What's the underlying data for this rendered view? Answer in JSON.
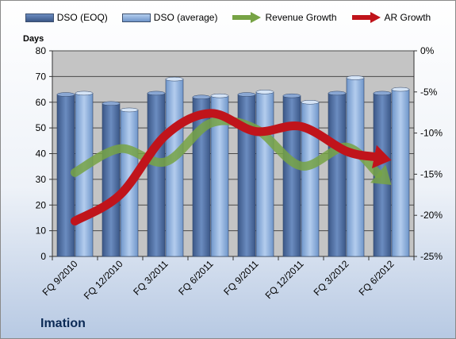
{
  "company": "Imation",
  "chart_data": {
    "type": "bar",
    "categories": [
      "FQ 9/2010",
      "FQ 12/2010",
      "FQ 3/2011",
      "FQ 6/2011",
      "FQ 9/2011",
      "FQ 12/2011",
      "FQ 3/2012",
      "FQ 6/2012"
    ],
    "series": [
      {
        "name": "DSO (EOQ)",
        "type": "bar",
        "axis": "left",
        "color": "#4f6fa3",
        "values": [
          63,
          59.5,
          63.5,
          62,
          63,
          62.5,
          63.5,
          63.5
        ]
      },
      {
        "name": "DSO (average)",
        "type": "bar",
        "axis": "left",
        "color": "#8fb0dd",
        "values": [
          63.5,
          57,
          69,
          62.5,
          64,
          60,
          69.5,
          65
        ]
      },
      {
        "name": "Revenue Growth",
        "type": "line-arrow",
        "axis": "right",
        "color": "#77a345",
        "values": [
          -14.8,
          -11.9,
          -13.5,
          -8.8,
          -9.5,
          -14.0,
          -11.7,
          -16.3
        ]
      },
      {
        "name": "AR Growth",
        "type": "line-arrow",
        "axis": "right",
        "color": "#c0141b",
        "values": [
          -20.7,
          -17.5,
          -10.3,
          -7.6,
          -9.8,
          -9.2,
          -12.2,
          -13.3
        ]
      }
    ],
    "ylabel": "Days",
    "ylim": [
      0,
      80
    ],
    "yticks": [
      "0",
      "10",
      "20",
      "30",
      "40",
      "50",
      "60",
      "70",
      "80"
    ],
    "y2lim": [
      -25,
      0
    ],
    "y2ticks": [
      "-25%",
      "-20%",
      "-15%",
      "-10%",
      "-5%",
      "0%"
    ],
    "grid": true,
    "legend_position": "top"
  }
}
